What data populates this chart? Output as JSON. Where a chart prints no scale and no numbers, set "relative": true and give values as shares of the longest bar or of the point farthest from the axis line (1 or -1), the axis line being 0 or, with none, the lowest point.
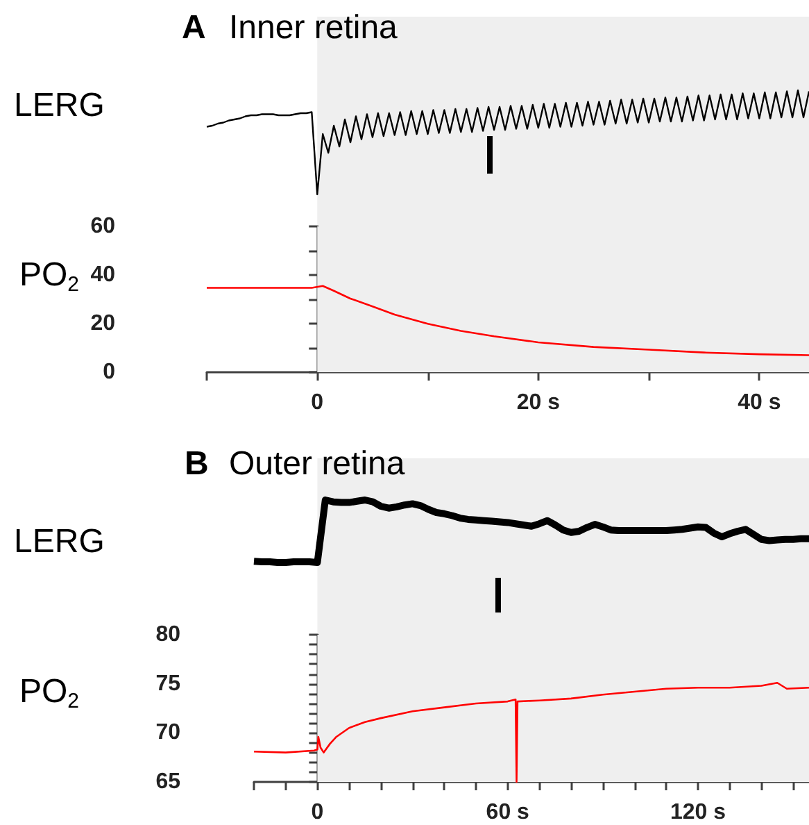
{
  "chart_data": [
    {
      "type": "line",
      "title": "Inner retina",
      "annotations": [
        "A"
      ],
      "ylabel": "LERG",
      "relative": true,
      "marker": "none",
      "categories": [
        null,
        null,
        null,
        null,
        null,
        null,
        null,
        null,
        null,
        null,
        null,
        null,
        null,
        null,
        null,
        null,
        null,
        null,
        null,
        null,
        null,
        null,
        null,
        null,
        null,
        null,
        null,
        null,
        null,
        null,
        null,
        null,
        null,
        null,
        null,
        null,
        null,
        null,
        null,
        null,
        null,
        null,
        null,
        null,
        null,
        null,
        null,
        null,
        null,
        null,
        null,
        null,
        null,
        null,
        null,
        null,
        null,
        null,
        null,
        null,
        null,
        null,
        null,
        null,
        null,
        null,
        null,
        null,
        null,
        null,
        null,
        null,
        null,
        null,
        null,
        null,
        null,
        null,
        null,
        null,
        null,
        null,
        null,
        null,
        null,
        null,
        null,
        null,
        null,
        null,
        null,
        null,
        null,
        null,
        null,
        null,
        null,
        null,
        null,
        null,
        null,
        null,
        null,
        null,
        null,
        null,
        null,
        null,
        null,
        null
      ],
      "series": [
        {
          "color": "#000000",
          "values": [
            0.65,
            0.66,
            0.68,
            0.69,
            0.71,
            0.72,
            0.73,
            0.75,
            0.76,
            0.76,
            0.77,
            0.77,
            0.77,
            0.76,
            0.76,
            0.76,
            0.77,
            0.78,
            0.78,
            0.79,
            0,
            0.58,
            0.4,
            0.66,
            0.46,
            0.72,
            0.5,
            0.75,
            0.53,
            0.77,
            0.55,
            0.78,
            0.56,
            0.78,
            0.57,
            0.79,
            0.57,
            0.8,
            0.58,
            0.8,
            0.58,
            0.81,
            0.59,
            0.81,
            0.59,
            0.82,
            0.6,
            0.82,
            0.6,
            0.83,
            0.61,
            0.84,
            0.62,
            0.84,
            0.62,
            0.85,
            0.63,
            0.85,
            0.63,
            0.86,
            0.64,
            0.87,
            0.64,
            0.87,
            0.65,
            0.88,
            0.65,
            0.88,
            0.66,
            0.89,
            0.67,
            0.89,
            0.67,
            0.9,
            0.68,
            0.91,
            0.68,
            0.91,
            0.69,
            0.92,
            0.69,
            0.92,
            0.7,
            0.93,
            0.7,
            0.93,
            0.7,
            0.94,
            0.71,
            0.95,
            0.71,
            0.95,
            0.72,
            0.96,
            0.72,
            0.96,
            0.72,
            0.97,
            0.73,
            0.97,
            0.73,
            0.98,
            0.73,
            0.98,
            0.74,
            0.99,
            0.74,
            1.0,
            0.74,
            0.99
          ]
        }
      ]
    },
    {
      "type": "line",
      "ylabel": "PO$_{2}$",
      "marker": "none",
      "xlim": [
        -10,
        44.5
      ],
      "ylim": [
        0,
        60
      ],
      "xticks": [
        {
          "value": -10,
          "label": null
        },
        0,
        {
          "value": 10,
          "label": null
        },
        {
          "value": 20,
          "label": "20 s"
        },
        {
          "value": 30,
          "label": null
        },
        {
          "value": 40,
          "label": "40 s"
        }
      ],
      "yticks": [
        0,
        {
          "value": 10,
          "label": null
        },
        20,
        {
          "value": 30,
          "label": null
        },
        40,
        {
          "value": 50,
          "label": null
        },
        60
      ],
      "bands": [
        {
          "axis": "x",
          "from": 0,
          "to": 44.5,
          "color": "#efefef"
        }
      ],
      "x": [
        -10,
        -5,
        -0.5,
        0.5,
        1.5,
        3,
        5,
        7,
        10,
        13,
        16,
        20,
        25,
        30,
        35,
        40,
        44.5
      ],
      "series": [
        {
          "color": "#ff0000",
          "values": [
            34.7,
            34.7,
            34.7,
            35.5,
            33.5,
            30.3,
            27.1,
            23.7,
            19.9,
            17.0,
            14.8,
            12.3,
            10.4,
            9.3,
            8.1,
            7.4,
            7.0
          ]
        }
      ]
    },
    {
      "type": "line",
      "title": "Outer retina",
      "annotations": [
        "B"
      ],
      "ylabel": "LERG",
      "relative": true,
      "marker": "none",
      "categories": [
        null,
        null,
        null,
        null,
        null,
        null,
        null,
        null,
        null,
        null,
        null,
        null,
        null,
        null,
        null,
        null,
        null,
        null,
        null,
        null,
        null,
        null,
        null,
        null,
        null,
        null,
        null,
        null,
        null,
        null,
        null,
        null,
        null,
        null,
        null,
        null,
        null,
        null,
        null,
        null,
        null,
        null,
        null,
        null,
        null,
        null,
        null,
        null,
        null,
        null,
        null,
        null,
        null,
        null,
        null,
        null,
        null,
        null,
        null,
        null,
        null,
        null,
        null,
        null,
        null,
        null,
        null,
        null,
        null,
        null,
        null
      ],
      "series": [
        {
          "color": "#000000",
          "values": [
            0.02,
            0.01,
            0.01,
            0,
            0,
            0.01,
            0.01,
            0.01,
            0,
            1.0,
            0.97,
            0.96,
            0.96,
            0.98,
            1.0,
            0.97,
            0.9,
            0.87,
            0.89,
            0.92,
            0.94,
            0.91,
            0.85,
            0.8,
            0.78,
            0.75,
            0.71,
            0.69,
            0.68,
            0.67,
            0.66,
            0.65,
            0.64,
            0.62,
            0.6,
            0.58,
            0.62,
            0.67,
            0.6,
            0.52,
            0.48,
            0.5,
            0.56,
            0.61,
            0.57,
            0.52,
            0.51,
            0.51,
            0.51,
            0.51,
            0.51,
            0.51,
            0.51,
            0.52,
            0.53,
            0.55,
            0.57,
            0.56,
            0.47,
            0.41,
            0.46,
            0.5,
            0.53,
            0.45,
            0.37,
            0.35,
            0.36,
            0.37,
            0.37,
            0.38,
            0.38
          ]
        }
      ]
    },
    {
      "type": "line",
      "ylabel": "PO$_{2}$",
      "marker": "none",
      "xlim": [
        -20,
        155
      ],
      "ylim": [
        65,
        80
      ],
      "xticks": [
        {
          "value": -20,
          "label": null
        },
        {
          "value": -10,
          "label": null
        },
        0,
        {
          "value": 10,
          "label": null
        },
        {
          "value": 20,
          "label": null
        },
        {
          "value": 30,
          "label": null
        },
        {
          "value": 40,
          "label": null
        },
        {
          "value": 50,
          "label": null
        },
        {
          "value": 60,
          "label": "60 s"
        },
        {
          "value": 70,
          "label": null
        },
        {
          "value": 80,
          "label": null
        },
        {
          "value": 90,
          "label": null
        },
        {
          "value": 100,
          "label": null
        },
        {
          "value": 110,
          "label": null
        },
        {
          "value": 120,
          "label": "120 s"
        },
        {
          "value": 130,
          "label": null
        },
        {
          "value": 140,
          "label": null
        },
        {
          "value": 150,
          "label": null
        }
      ],
      "yticks": [
        65,
        {
          "value": 66,
          "label": null
        },
        {
          "value": 67,
          "label": null
        },
        {
          "value": 68,
          "label": null
        },
        {
          "value": 69,
          "label": null
        },
        70,
        {
          "value": 71,
          "label": null
        },
        {
          "value": 72,
          "label": null
        },
        {
          "value": 73,
          "label": null
        },
        {
          "value": 74,
          "label": null
        },
        75,
        {
          "value": 76,
          "label": null
        },
        {
          "value": 77,
          "label": null
        },
        {
          "value": 78,
          "label": null
        },
        {
          "value": 79,
          "label": null
        },
        80
      ],
      "bands": [
        {
          "axis": "x",
          "from": 0,
          "to": 155,
          "color": "#efefef"
        }
      ],
      "x": [
        -20,
        -10,
        -1,
        0,
        0.3,
        1,
        2,
        4,
        6,
        10,
        15,
        20,
        30,
        40,
        50,
        60,
        62.5,
        62.8,
        63.1,
        70,
        80,
        90,
        100,
        110,
        120,
        130,
        140,
        145,
        148,
        155
      ],
      "series": [
        {
          "color": "#ff0000",
          "values": [
            68.1,
            68.0,
            68.2,
            68.3,
            69.6,
            68.5,
            68.0,
            68.9,
            69.6,
            70.5,
            71.1,
            71.5,
            72.2,
            72.6,
            73.0,
            73.2,
            73.4,
            65.0,
            73.2,
            73.3,
            73.5,
            73.9,
            74.2,
            74.5,
            74.6,
            74.6,
            74.8,
            75.1,
            74.5,
            74.6
          ]
        }
      ]
    }
  ]
}
